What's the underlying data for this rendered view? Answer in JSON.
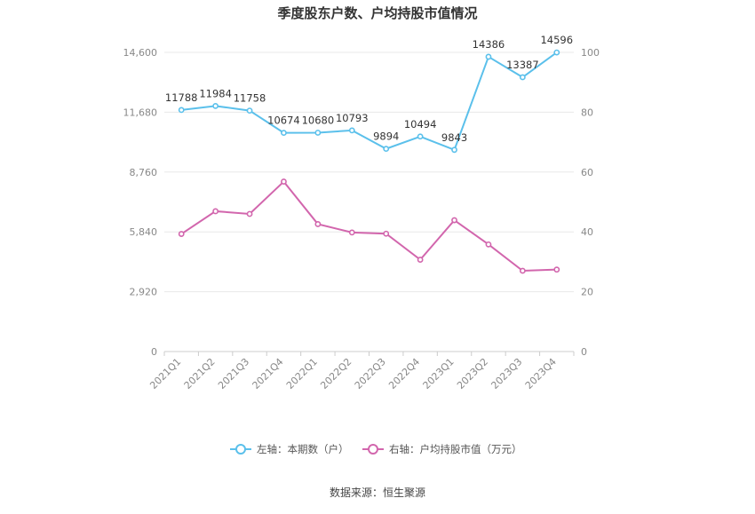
{
  "chart_data": {
    "type": "line",
    "title": "季度股东户数、户均持股市值情况",
    "categories": [
      "2021Q1",
      "2021Q2",
      "2021Q3",
      "2021Q4",
      "2022Q1",
      "2022Q2",
      "2022Q3",
      "2022Q4",
      "2023Q1",
      "2023Q2",
      "2023Q3",
      "2023Q4"
    ],
    "series": [
      {
        "name": "左轴：本期数（户）",
        "axis": "left",
        "color": "#5bc0eb",
        "values": [
          11788,
          11984,
          11758,
          10674,
          10680,
          10793,
          9894,
          10494,
          9843,
          14386,
          13387,
          14596
        ],
        "labels": [
          "11788",
          "11984",
          "11758",
          "10674",
          "10680",
          "10793",
          "9894",
          "10494",
          "9843",
          "14386",
          "13387",
          "14596"
        ]
      },
      {
        "name": "右轴：户均持股市值（万元）",
        "axis": "right",
        "color": "#d266ad",
        "values": [
          39.3,
          46.9,
          46.0,
          56.8,
          42.6,
          39.8,
          39.4,
          30.7,
          43.9,
          35.8,
          27.0,
          27.4
        ]
      }
    ],
    "left_axis": {
      "min": 0,
      "max": 14600,
      "ticks": [
        "0",
        "2,920",
        "5,840",
        "8,760",
        "11,680",
        "14,600"
      ]
    },
    "right_axis": {
      "min": 0,
      "max": 100,
      "ticks": [
        "0",
        "20",
        "40",
        "60",
        "80",
        "100"
      ]
    },
    "grid": true,
    "legend_position": "bottom",
    "source": "数据来源：恒生聚源"
  }
}
